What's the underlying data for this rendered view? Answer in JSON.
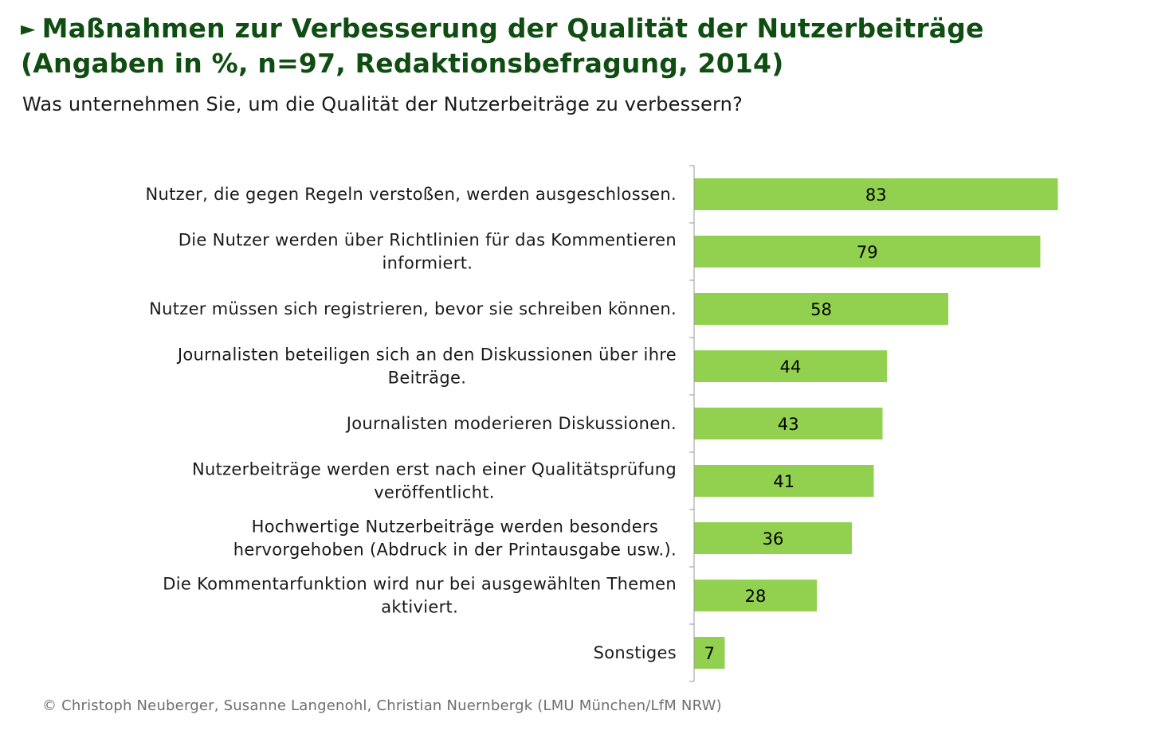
{
  "header": {
    "marker": "►",
    "title_line1": "Maßnahmen zur Verbesserung der Qualität der Nutzerbeiträge",
    "title_line2": "(Angaben in %, n=97, Redaktionsbefragung, 2014)",
    "subtitle": "Was unternehmen Sie, um die Qualität der Nutzerbeiträge zu verbessern?"
  },
  "footer": {
    "source": "© Christoph Neuberger, Susanne Langenohl, Christian Nuernbergk (LMU München/LfM NRW)"
  },
  "colors": {
    "bar": "#92d050",
    "title": "#0f4d12",
    "axis": "#999999"
  },
  "chart_data": {
    "type": "bar",
    "orientation": "horizontal",
    "categories": [
      [
        "Nutzer, die gegen Regeln verstoßen, werden ausgeschlossen."
      ],
      [
        "Die Nutzer werden über Richtlinien für das Kommentieren",
        "informiert."
      ],
      [
        "Nutzer müssen sich registrieren, bevor sie schreiben können."
      ],
      [
        "Journalisten beteiligen sich an den Diskussionen über ihre",
        "Beiträge."
      ],
      [
        "Journalisten moderieren Diskussionen."
      ],
      [
        "Nutzerbeiträge werden erst nach einer Qualitätsprüfung",
        "veröffentlicht."
      ],
      [
        "Hochwertige Nutzerbeiträge werden besonders",
        "hervorgehoben (Abdruck in der Printausgabe usw.)."
      ],
      [
        "Die Kommentarfunktion wird nur bei ausgewählten Themen",
        "aktiviert."
      ],
      [
        "Sonstiges"
      ]
    ],
    "values": [
      83,
      79,
      58,
      44,
      43,
      41,
      36,
      28,
      7
    ],
    "xlim": [
      0,
      100
    ],
    "data_labels": true,
    "grid": false,
    "legend": false
  }
}
